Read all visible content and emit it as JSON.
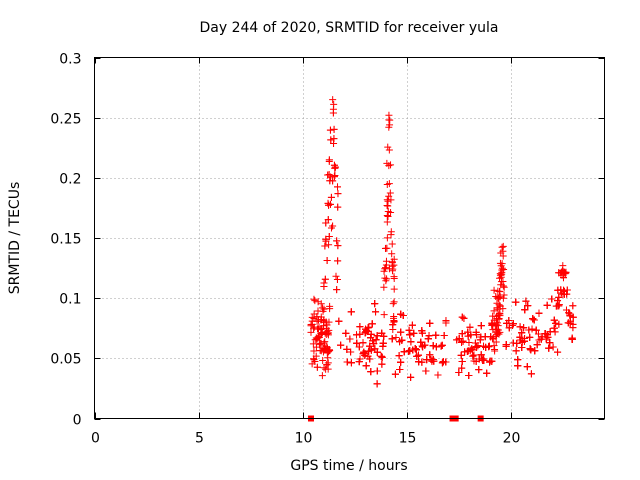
{
  "chart_data": {
    "type": "scatter",
    "title": "Day 244 of 2020, SRMTID for receiver yula",
    "xlabel": "GPS time / hours",
    "ylabel": "SRMTID / TECUs",
    "xlim": [
      0,
      24.5
    ],
    "ylim": [
      0,
      0.3
    ],
    "xticks": [
      0,
      5,
      10,
      15,
      20
    ],
    "xtick_labels": [
      "0",
      "5",
      "10",
      "15",
      "20"
    ],
    "yticks": [
      0,
      0.05,
      0.1,
      0.15,
      0.2,
      0.25,
      0.3
    ],
    "ytick_labels": [
      "0",
      "0.05",
      "0.1",
      "0.15",
      "0.2",
      "0.25",
      "0.3"
    ],
    "grid": true,
    "legend": "none",
    "series": [
      {
        "name": "SRMTID",
        "marker": "+",
        "color": "#ff0000",
        "segments": [
          {
            "x_start": 10.4,
            "x_end": 11.3,
            "baseline": 0.065,
            "spread": 0.028
          },
          {
            "x_start": 11.0,
            "x_end": 11.7,
            "baseline": 0.12,
            "spread": 0.06,
            "peak_x": 11.45,
            "peak_y": 0.265
          },
          {
            "x_start": 11.7,
            "x_end": 13.9,
            "baseline": 0.06,
            "spread": 0.028
          },
          {
            "x_start": 13.9,
            "x_end": 14.4,
            "baseline": 0.09,
            "spread": 0.04,
            "peak_x": 14.15,
            "peak_y": 0.252
          },
          {
            "x_start": 14.3,
            "x_end": 16.9,
            "baseline": 0.055,
            "spread": 0.026
          },
          {
            "x_start": 17.4,
            "x_end": 19.1,
            "baseline": 0.055,
            "spread": 0.024
          },
          {
            "x_start": 19.1,
            "x_end": 19.7,
            "baseline": 0.07,
            "spread": 0.03,
            "peak_x": 19.6,
            "peak_y": 0.143
          },
          {
            "x_start": 19.7,
            "x_end": 22.1,
            "baseline": 0.065,
            "spread": 0.028
          },
          {
            "x_start": 22.1,
            "x_end": 23.0,
            "baseline": 0.075,
            "spread": 0.03,
            "peak_x": 22.5,
            "peak_y": 0.127
          }
        ],
        "zero_markers": [
          10.4,
          17.2,
          17.35,
          18.55
        ]
      }
    ]
  }
}
